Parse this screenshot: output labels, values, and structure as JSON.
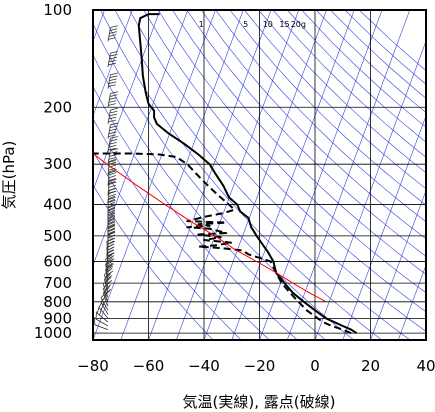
{
  "chart_data": {
    "type": "line",
    "xlabel": "気温(実線), 露点(破線)",
    "ylabel": "気圧(hPa)",
    "xlim": [
      -80,
      40
    ],
    "ylim": [
      1050,
      100
    ],
    "y_scale": "log",
    "x_ticks": [
      -80,
      -60,
      -40,
      -20,
      0,
      20,
      40
    ],
    "x_tick_labels": [
      "−80",
      "−60",
      "−40",
      "−20",
      "0",
      "20",
      "40"
    ],
    "y_ticks": [
      100,
      200,
      300,
      400,
      500,
      600,
      700,
      800,
      900,
      1000
    ],
    "y_tick_labels": [
      "100",
      "200",
      "300",
      "400",
      "500",
      "600",
      "700",
      "800",
      "900",
      "1000"
    ],
    "mixing_ratio_labels": [
      "1",
      "5",
      "10",
      "15",
      "20g"
    ],
    "mixing_ratio_label_x": [
      -41,
      -25,
      -17,
      -11,
      -6
    ],
    "skew_dx_per_decade": 120,
    "isotherms": [
      -200,
      -190,
      -180,
      -170,
      -160,
      -150,
      -140,
      -130,
      -120,
      -110,
      -100,
      -90,
      -80,
      -70,
      -60,
      -50,
      -40,
      -30,
      -20,
      -10,
      0,
      10,
      20,
      30,
      40
    ],
    "series": [
      {
        "style": "solid",
        "color": "#000000",
        "points": [
          [
            15,
            1000
          ],
          [
            13,
            975
          ],
          [
            10,
            950
          ],
          [
            7,
            925
          ],
          [
            4,
            900
          ],
          [
            0,
            850
          ],
          [
            -4,
            800
          ],
          [
            -8,
            750
          ],
          [
            -11,
            700
          ],
          [
            -14,
            650
          ],
          [
            -15,
            600
          ],
          [
            -17,
            560
          ],
          [
            -19,
            530
          ],
          [
            -21,
            500
          ],
          [
            -23,
            470
          ],
          [
            -24,
            440
          ],
          [
            -27,
            420
          ],
          [
            -28,
            400
          ],
          [
            -31,
            380
          ],
          [
            -33,
            350
          ],
          [
            -36,
            320
          ],
          [
            -38,
            300
          ],
          [
            -42,
            280
          ],
          [
            -47,
            260
          ],
          [
            -53,
            240
          ],
          [
            -57,
            225
          ],
          [
            -58,
            215
          ],
          [
            -58,
            205
          ],
          [
            -60,
            195
          ],
          [
            -61,
            180
          ],
          [
            -62,
            160
          ],
          [
            -62.5,
            140
          ],
          [
            -63,
            125
          ],
          [
            -63.5,
            112
          ],
          [
            -63,
            106
          ],
          [
            -61,
            104
          ],
          [
            -60,
            103
          ],
          [
            -56,
            103
          ]
        ]
      },
      {
        "style": "dashed",
        "color": "#000000",
        "points": [
          [
            13,
            1000
          ],
          [
            10,
            975
          ],
          [
            6,
            950
          ],
          [
            3,
            925
          ],
          [
            1,
            900
          ],
          [
            -3,
            850
          ],
          [
            -6,
            800
          ],
          [
            -9,
            750
          ],
          [
            -12,
            700
          ],
          [
            -14,
            650
          ],
          [
            -16,
            600
          ],
          [
            -24,
            570
          ],
          [
            -26,
            555
          ],
          [
            -34,
            545
          ],
          [
            -42,
            540
          ],
          [
            -36,
            535
          ],
          [
            -30,
            525
          ],
          [
            -40,
            515
          ],
          [
            -34,
            505
          ],
          [
            -42,
            495
          ],
          [
            -32,
            490
          ],
          [
            -38,
            475
          ],
          [
            -46,
            470
          ],
          [
            -38,
            465
          ],
          [
            -42,
            460
          ],
          [
            -32,
            455
          ],
          [
            -46,
            450
          ],
          [
            -39,
            435
          ],
          [
            -33,
            425
          ],
          [
            -29,
            415
          ],
          [
            -31,
            400
          ],
          [
            -34,
            380
          ],
          [
            -37,
            360
          ],
          [
            -40,
            340
          ],
          [
            -43,
            320
          ],
          [
            -46,
            300
          ],
          [
            -50,
            285
          ],
          [
            -56,
            280
          ],
          [
            -66,
            278
          ],
          [
            -76,
            278
          ],
          [
            -80,
            278
          ]
        ]
      },
      {
        "style": "solid",
        "color": "#ff0000",
        "points": [
          [
            4,
            800
          ],
          [
            -2,
            750
          ],
          [
            -8,
            700
          ],
          [
            -14,
            650
          ],
          [
            -21,
            600
          ],
          [
            -29,
            550
          ],
          [
            -36,
            500
          ],
          [
            -45,
            450
          ],
          [
            -54,
            400
          ],
          [
            -64,
            350
          ],
          [
            -75,
            300
          ],
          [
            -87,
            250
          ],
          [
            -96,
            220
          ]
        ]
      }
    ],
    "wind_barbs": [
      {
        "p": 1000,
        "speed": 5,
        "dir": 180
      },
      {
        "p": 975,
        "speed": 10,
        "dir": 200
      },
      {
        "p": 950,
        "speed": 10,
        "dir": 210
      },
      {
        "p": 925,
        "speed": 15,
        "dir": 220
      },
      {
        "p": 900,
        "speed": 15,
        "dir": 230
      },
      {
        "p": 875,
        "speed": 20,
        "dir": 240
      },
      {
        "p": 850,
        "speed": 20,
        "dir": 240
      },
      {
        "p": 825,
        "speed": 20,
        "dir": 250
      },
      {
        "p": 800,
        "speed": 25,
        "dir": 250
      },
      {
        "p": 775,
        "speed": 25,
        "dir": 250
      },
      {
        "p": 750,
        "speed": 25,
        "dir": 255
      },
      {
        "p": 725,
        "speed": 30,
        "dir": 255
      },
      {
        "p": 700,
        "speed": 30,
        "dir": 260
      },
      {
        "p": 675,
        "speed": 30,
        "dir": 260
      },
      {
        "p": 650,
        "speed": 35,
        "dir": 260
      },
      {
        "p": 625,
        "speed": 35,
        "dir": 265
      },
      {
        "p": 600,
        "speed": 35,
        "dir": 265
      },
      {
        "p": 575,
        "speed": 40,
        "dir": 265
      },
      {
        "p": 550,
        "speed": 40,
        "dir": 270
      },
      {
        "p": 525,
        "speed": 40,
        "dir": 270
      },
      {
        "p": 500,
        "speed": 45,
        "dir": 270
      },
      {
        "p": 475,
        "speed": 45,
        "dir": 270
      },
      {
        "p": 450,
        "speed": 50,
        "dir": 270
      },
      {
        "p": 425,
        "speed": 50,
        "dir": 270
      },
      {
        "p": 400,
        "speed": 55,
        "dir": 275
      },
      {
        "p": 375,
        "speed": 55,
        "dir": 275
      },
      {
        "p": 350,
        "speed": 60,
        "dir": 275
      },
      {
        "p": 325,
        "speed": 60,
        "dir": 275
      },
      {
        "p": 300,
        "speed": 60,
        "dir": 280
      },
      {
        "p": 275,
        "speed": 55,
        "dir": 280
      },
      {
        "p": 250,
        "speed": 55,
        "dir": 280
      },
      {
        "p": 225,
        "speed": 50,
        "dir": 280
      },
      {
        "p": 200,
        "speed": 50,
        "dir": 280
      },
      {
        "p": 175,
        "speed": 50,
        "dir": 280
      },
      {
        "p": 150,
        "speed": 50,
        "dir": 280
      },
      {
        "p": 125,
        "speed": 45,
        "dir": 280
      },
      {
        "p": 100,
        "speed": 45,
        "dir": 280
      }
    ],
    "colors": {
      "grid": "#000000",
      "background_lines": "#3344dd",
      "parcel": "#ff0000"
    }
  }
}
